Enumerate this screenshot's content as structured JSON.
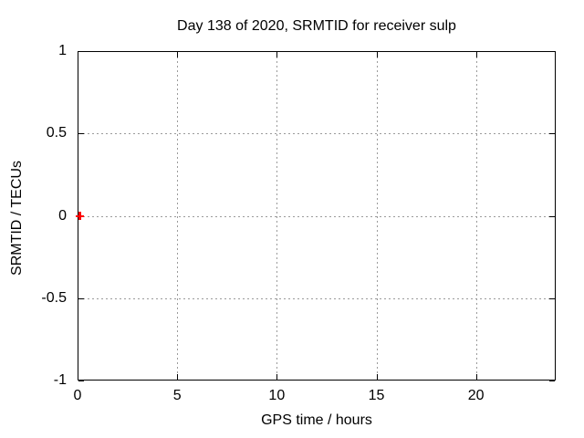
{
  "chart_data": {
    "type": "scatter",
    "title": "Day 138 of 2020, SRMTID for receiver sulp",
    "xlabel": "GPS time / hours",
    "ylabel": "SRMTID / TECUs",
    "xlim": [
      0,
      24
    ],
    "ylim": [
      -1,
      1
    ],
    "xticks": [
      0,
      5,
      10,
      15,
      20
    ],
    "yticks": [
      -1,
      -0.5,
      0,
      0.5,
      1
    ],
    "grid": "dashed",
    "grid_color": "#9a9a9a",
    "axis_color": "#000000",
    "background_color": "#ffffff",
    "legend": "none",
    "marker": "plus",
    "marker_color": "#ff0000",
    "points": [
      {
        "x": 0.1,
        "y": 0
      }
    ]
  }
}
